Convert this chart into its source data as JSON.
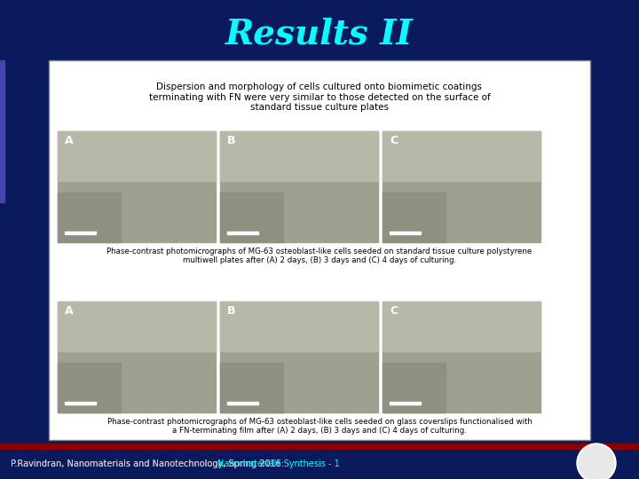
{
  "title": "Results II",
  "title_color": "#00FFFF",
  "title_fontsize": 28,
  "title_fontstyle": "bold",
  "bg_color": "#0a1a5c",
  "slide_bg": "#0a1a5c",
  "content_box_color": "#ffffff",
  "footer_text_plain": "P.Ravindran, Nanomaterials and Nanotechnology, Spring 2016: ",
  "footer_text_link": "Nanomaterials Synthesis - 1",
  "footer_text_color": "#cccccc",
  "footer_link_color": "#00FFFF",
  "footer_bar_color": "#8b0000",
  "header_caption": "Dispersion and morphology of cells cultured onto biomimetic coatings\nterminating with FN were very similar to those detected on the surface of\nstandard tissue culture plates",
  "caption1": "Phase-contrast photomicrographs of MG-63 osteoblast-like cells seeded on standard tissue culture polystyrene\nmultiwell plates after (A) 2 days, (B) 3 days and (C) 4 days of culturing.",
  "caption2": "Phase-contrast photomicrographs of MG-63 osteoblast-like cells seeded on glass coverslips functionalised with\na FN-terminating film after (A) 2 days, (B) 3 days and (C) 4 days of culturing.",
  "image_box_color": "#cccccc",
  "label_A_color": "#000000",
  "image_bg_top": "#b0b0a0",
  "image_bg_bottom": "#909088"
}
